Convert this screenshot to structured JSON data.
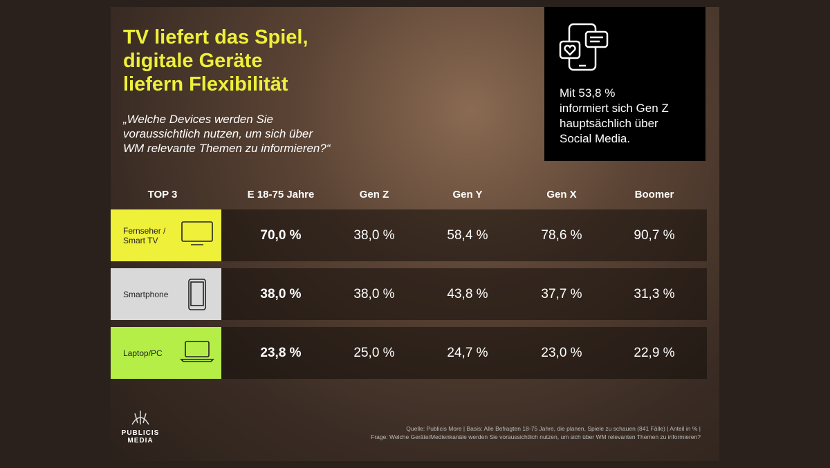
{
  "header": {
    "title_lines": [
      "TV liefert das Spiel,",
      "digitale Geräte",
      "liefern Flexibilität"
    ],
    "question_lines": [
      "„Welche Devices werden Sie",
      "voraussichtlich nutzen, um sich über",
      "WM relevante Themen zu informieren?“"
    ]
  },
  "callout": {
    "lines": [
      "Mit 53,8 %",
      "informiert sich Gen Z",
      "hauptsächlich über",
      "Social Media."
    ]
  },
  "table": {
    "header": [
      "TOP 3",
      "E 18-75 Jahre",
      "Gen Z",
      "Gen Y",
      "Gen X",
      "Boomer"
    ],
    "rows": [
      {
        "label_lines": [
          "Fernseher /",
          "Smart TV"
        ],
        "values": [
          "70,0 %",
          "38,0 %",
          "58,4 %",
          "78,6 %",
          "90,7 %"
        ]
      },
      {
        "label_lines": [
          "Smartphone"
        ],
        "values": [
          "38,0 %",
          "38,0 %",
          "43,8 %",
          "37,7 %",
          "31,3 %"
        ]
      },
      {
        "label_lines": [
          "Laptop/PC"
        ],
        "values": [
          "23,8 %",
          "25,0 %",
          "24,7 %",
          "23,0 %",
          "22,9 %"
        ]
      }
    ]
  },
  "footer": {
    "logo_lines": [
      "PUBLICIS",
      "MEDIA"
    ],
    "source_lines": [
      "Quelle: Publicis More | Basis: Alle Befragten 18-75 Jahre, die planen, Spiele zu schauen (841 Fälle) | Anteil in % |",
      "Frage: Welche Geräte/Medienkanäle werden Sie voraussichtlich nutzen, um sich über WM relevanten Themen zu informieren?"
    ]
  }
}
